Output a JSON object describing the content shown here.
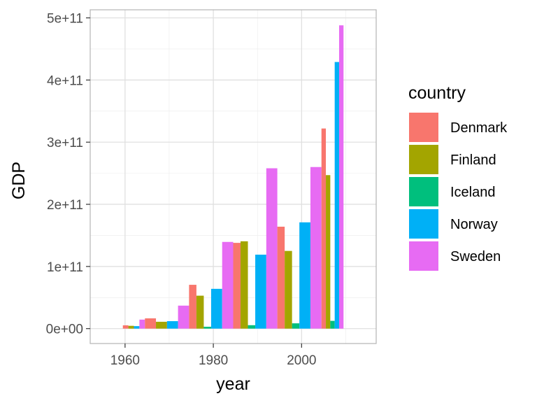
{
  "chart_data": {
    "type": "bar",
    "xlabel": "year",
    "ylabel": "GDP",
    "x_ticks": [
      1960,
      1980,
      2000
    ],
    "y_ticks": [
      {
        "value": 0,
        "label": "0e+00"
      },
      {
        "value": 100000000000,
        "label": "1e+11"
      },
      {
        "value": 200000000000,
        "label": "2e+11"
      },
      {
        "value": 300000000000,
        "label": "3e+11"
      },
      {
        "value": 400000000000,
        "label": "4e+11"
      },
      {
        "value": 500000000000,
        "label": "5e+11"
      }
    ],
    "xlim": [
      1952.1,
      2016.9
    ],
    "ylim": [
      -24000000000,
      513000000000
    ],
    "grid": true,
    "legend_position": "right",
    "legend_title": "country",
    "categories": [
      1962,
      1967,
      1972,
      1977,
      1982,
      1987,
      1992,
      1997,
      2002,
      2007
    ],
    "series": [
      {
        "name": "Denmark",
        "color": "#F8766D",
        "values": [
          5300000000,
          16500000000,
          null,
          70500000000,
          null,
          138000000000,
          null,
          164000000000,
          null,
          322000000000
        ]
      },
      {
        "name": "Finland",
        "color": "#A3A500",
        "values": [
          4500000000,
          11000000000,
          null,
          53000000000,
          null,
          140500000000,
          null,
          125000000000,
          null,
          247000000000
        ]
      },
      {
        "name": "Iceland",
        "color": "#00BF7D",
        "values": [
          null,
          null,
          null,
          3000000000,
          null,
          5500000000,
          null,
          8500000000,
          null,
          12500000000
        ]
      },
      {
        "name": "Norway",
        "color": "#00B0F6",
        "values": [
          4000000000,
          null,
          12000000000,
          null,
          64000000000,
          null,
          119000000000,
          null,
          171000000000,
          429000000000
        ]
      },
      {
        "name": "Sweden",
        "color": "#E76BF3",
        "values": [
          14500000000,
          null,
          37000000000,
          null,
          139500000000,
          null,
          258000000000,
          null,
          260000000000,
          488000000000
        ]
      }
    ]
  }
}
